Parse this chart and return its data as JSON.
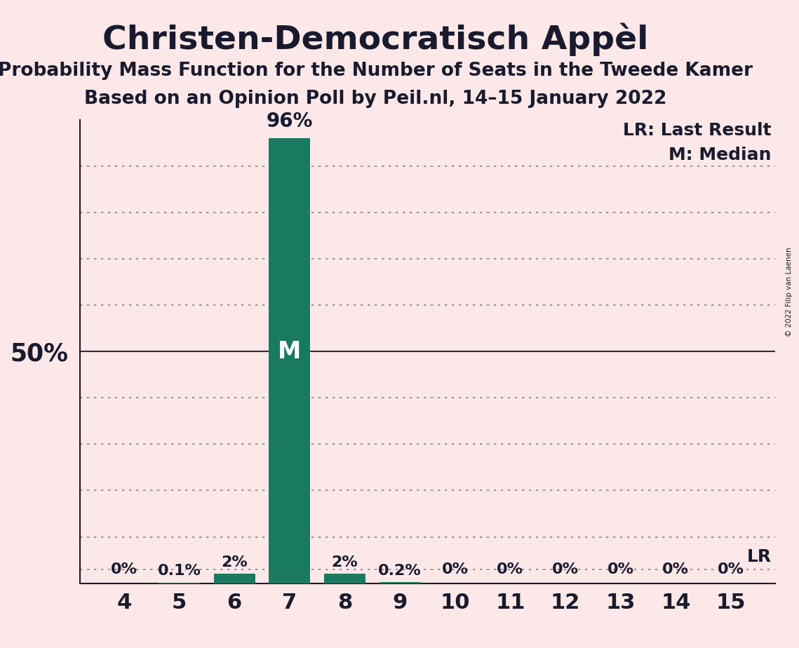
{
  "title": "Christen-Democratisch Appèl",
  "subtitle1": "Probability Mass Function for the Number of Seats in the Tweede Kamer",
  "subtitle2": "Based on an Opinion Poll by Peil.nl, 14–15 January 2022",
  "copyright": "© 2022 Filip van Laenen",
  "seats": [
    4,
    5,
    6,
    7,
    8,
    9,
    10,
    11,
    12,
    13,
    14,
    15
  ],
  "probabilities": [
    0.0,
    0.1,
    2.0,
    96.0,
    2.0,
    0.2,
    0.0,
    0.0,
    0.0,
    0.0,
    0.0,
    0.0
  ],
  "bar_labels": [
    "0%",
    "0.1%",
    "2%",
    "96%",
    "2%",
    "0.2%",
    "0%",
    "0%",
    "0%",
    "0%",
    "0%",
    "0%"
  ],
  "median_seat": 7,
  "last_result_seat": 15,
  "bar_color": "#1a7a60",
  "background_color": "#fce8e8",
  "text_color": "#1a1a2e",
  "ylabel_text": "50%",
  "ylim": [
    0,
    100
  ],
  "legend_lr": "LR: Last Result",
  "legend_m": "M: Median",
  "lr_label": "LR",
  "median_label": "M",
  "grid_color": "#555555",
  "solid_line_color": "#1a1a2e",
  "title_fontsize": 34,
  "subtitle_fontsize": 19,
  "label_fontsize": 16,
  "tick_fontsize": 20,
  "bar_width": 0.75
}
